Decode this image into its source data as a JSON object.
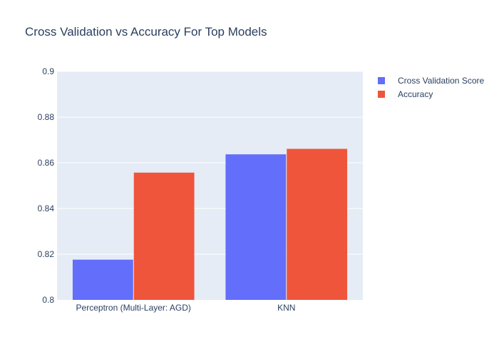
{
  "chart_data": {
    "type": "bar",
    "title": "Cross Validation vs Accuracy For Top Models",
    "categories": [
      "Perceptron (Multi-Layer: AGD)",
      "KNN"
    ],
    "series": [
      {
        "name": "Cross Validation Score",
        "color": "#636efa",
        "values": [
          0.8176,
          0.8637
        ]
      },
      {
        "name": "Accuracy",
        "color": "#ef553b",
        "values": [
          0.8557,
          0.8661
        ]
      }
    ],
    "ylim": [
      0.8,
      0.9
    ],
    "yticks": [
      0.8,
      0.82,
      0.84,
      0.86,
      0.88,
      0.9
    ],
    "ytick_labels": [
      "0.8",
      "0.82",
      "0.84",
      "0.86",
      "0.88",
      "0.9"
    ],
    "grid": true,
    "legend_position": "top-right",
    "plot_background": "#e5ecf6"
  }
}
